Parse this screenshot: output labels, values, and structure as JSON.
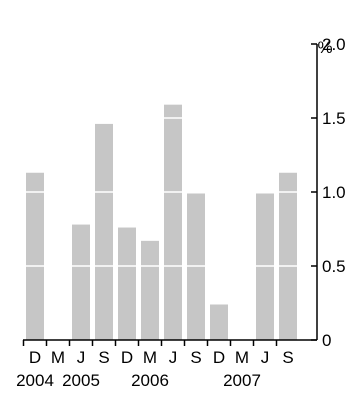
{
  "chart_data": {
    "type": "bar",
    "unit": "%",
    "categories": [
      "D",
      "M",
      "J",
      "S",
      "D",
      "M",
      "J",
      "S",
      "D",
      "M",
      "J",
      "S"
    ],
    "year_labels": [
      {
        "label": "2004",
        "category_index": 0
      },
      {
        "label": "2005",
        "category_index": 2
      },
      {
        "label": "2006",
        "category_index": 5
      },
      {
        "label": "2007",
        "category_index": 9
      }
    ],
    "values": [
      1.13,
      0,
      0.78,
      1.46,
      0.76,
      0.67,
      1.59,
      0.99,
      0.24,
      0,
      0.99,
      1.13
    ],
    "ylim": [
      0,
      2.0
    ],
    "yticks": [
      0,
      0.5,
      1.0,
      1.5,
      2.0
    ],
    "ytick_labels": [
      "0",
      "0.5",
      "1.0",
      "1.5",
      "2.0"
    ],
    "y_axis_position": "right",
    "grid": "white lines across bars at each tick",
    "title": "",
    "xlabel": "",
    "ylabel": "",
    "colors": {
      "bar": "#c6c6c6",
      "gridline": "#ffffff",
      "axis": "#000000",
      "background": "#ffffff"
    }
  }
}
